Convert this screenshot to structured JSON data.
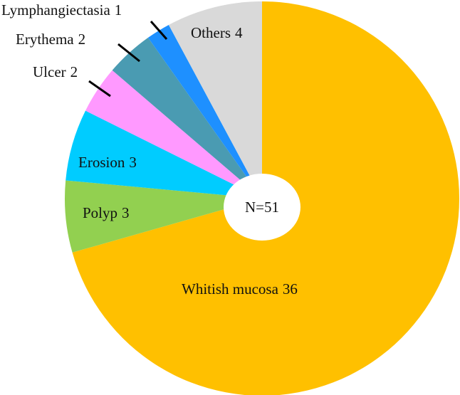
{
  "chart_data": {
    "type": "pie",
    "categories": [
      "Whitish mucosa",
      "Polyp",
      "Erosion",
      "Ulcer",
      "Erythema",
      "Lymphangiectasia",
      "Others"
    ],
    "values": [
      36,
      3,
      3,
      2,
      2,
      1,
      4
    ],
    "colors": [
      "#FFC000",
      "#92D050",
      "#00CCFF",
      "#FF99FF",
      "#4A9BB2",
      "#1E90FF",
      "#D9D9D9"
    ],
    "center_label": "N=51"
  }
}
